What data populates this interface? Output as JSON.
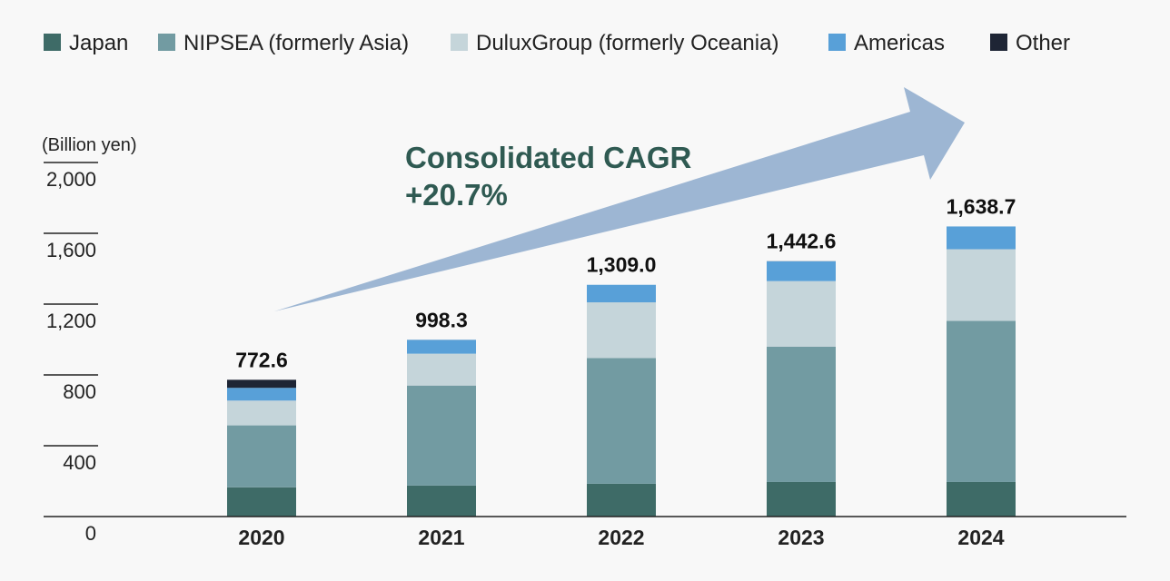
{
  "chart_data": {
    "type": "bar",
    "stacked": true,
    "unit_label": "(Billion yen)",
    "categories": [
      "2020",
      "2021",
      "2022",
      "2023",
      "2024"
    ],
    "ylim": [
      0,
      2000
    ],
    "yticks": [
      "0",
      "400",
      "800",
      "1,200",
      "1,600",
      "2,000"
    ],
    "ytick_values": [
      0,
      400,
      800,
      1200,
      1600,
      2000
    ],
    "legend_position": "top",
    "series": [
      {
        "name": "Japan",
        "color": "#3e6b67",
        "values": [
          165,
          175,
          185,
          195,
          195
        ]
      },
      {
        "name": "NIPSEA (formerly Asia)",
        "color": "#729ba2",
        "values": [
          350,
          565,
          710,
          765,
          910
        ]
      },
      {
        "name": "DuluxGroup (formerly Oceania)",
        "color": "#c5d5da",
        "values": [
          140,
          180,
          315,
          370,
          405
        ]
      },
      {
        "name": "Americas",
        "color": "#58a0d8",
        "values": [
          72,
          78,
          99,
          112,
          128.7
        ]
      },
      {
        "name": "Other",
        "color": "#1e2535",
        "values": [
          45.6,
          0.3,
          0,
          0.6,
          0
        ]
      }
    ],
    "totals": [
      "772.6",
      "998.3",
      "1,309.0",
      "1,442.6",
      "1,638.7"
    ],
    "annotation": {
      "line1": "Consolidated CAGR",
      "line2": "+20.7%",
      "arrow_color": "#9db6d3"
    }
  }
}
